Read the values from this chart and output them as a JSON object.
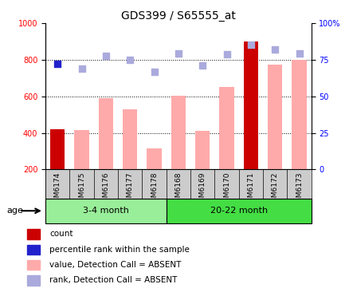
{
  "title": "GDS399 / S65555_at",
  "samples": [
    "GSM6174",
    "GSM6175",
    "GSM6176",
    "GSM6177",
    "GSM6178",
    "GSM6168",
    "GSM6169",
    "GSM6170",
    "GSM6171",
    "GSM6172",
    "GSM6173"
  ],
  "value_bars": [
    420,
    415,
    590,
    530,
    315,
    605,
    410,
    650,
    900,
    775,
    800
  ],
  "value_bar_colors": [
    "#cc0000",
    "#ffaaaa",
    "#ffaaaa",
    "#ffaaaa",
    "#ffaaaa",
    "#ffaaaa",
    "#ffaaaa",
    "#ffaaaa",
    "#cc0000",
    "#ffaaaa",
    "#ffaaaa"
  ],
  "rank_dots": [
    780,
    750,
    820,
    800,
    735,
    835,
    770,
    830,
    885,
    855,
    835
  ],
  "rank_dot_colors": [
    "#2222cc",
    "#aaaadd",
    "#aaaadd",
    "#aaaadd",
    "#aaaadd",
    "#aaaadd",
    "#aaaadd",
    "#aaaadd",
    "#aaaadd",
    "#aaaadd",
    "#aaaadd"
  ],
  "ylim_left": [
    200,
    1000
  ],
  "ylim_right": [
    0,
    100
  ],
  "yticks_left": [
    200,
    400,
    600,
    800,
    1000
  ],
  "yticks_right": [
    0,
    25,
    50,
    75,
    100
  ],
  "group1_label": "3-4 month",
  "group2_label": "20-22 month",
  "group1_count": 5,
  "group2_count": 6,
  "age_label": "age",
  "tick_area_color": "#cccccc",
  "group1_color": "#99ee99",
  "group2_color": "#44dd44",
  "legend_items": [
    {
      "label": "count",
      "color": "#cc0000"
    },
    {
      "label": "percentile rank within the sample",
      "color": "#2222cc"
    },
    {
      "label": "value, Detection Call = ABSENT",
      "color": "#ffaaaa"
    },
    {
      "label": "rank, Detection Call = ABSENT",
      "color": "#aaaadd"
    }
  ],
  "grid_lines": [
    400,
    600,
    800
  ],
  "bar_width": 0.6
}
